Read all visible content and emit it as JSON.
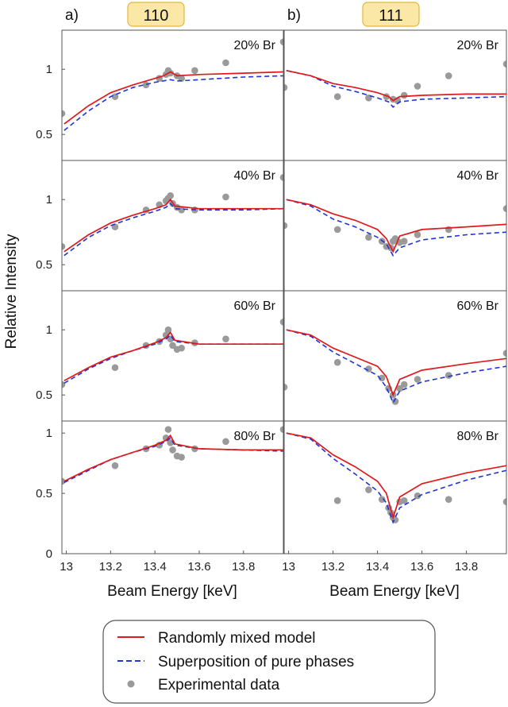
{
  "chart_data": {
    "type": "line",
    "ylabel": "Relative Intensity",
    "xlabel": "Beam Energy [keV]",
    "xlim": [
      12.98,
      13.98
    ],
    "x_ticks": [
      "13",
      "13.2",
      "13.4",
      "13.6",
      "13.8"
    ],
    "y_ticks": [
      "1",
      "0.5"
    ],
    "y_ticks_bottom": [
      "1",
      "0.5",
      "0"
    ],
    "ylim": [
      0.3,
      1.3
    ],
    "ylim_bottom_row": [
      0.0,
      1.1
    ],
    "columns": [
      {
        "panel_label": "a)",
        "reflection": "110"
      },
      {
        "panel_label": "b)",
        "reflection": "111"
      }
    ],
    "rows": [
      "20% Br",
      "40% Br",
      "60% Br",
      "80% Br"
    ],
    "legend": [
      {
        "label": "Randomly mixed model",
        "color": "#e0191b",
        "style": "solid"
      },
      {
        "label": "Superposition of pure phases",
        "color": "#1f35d6",
        "style": "dashed"
      },
      {
        "label": "Experimental data",
        "color": "#9a9a9a",
        "style": "marker"
      }
    ],
    "panels": [
      {
        "row": 0,
        "col": 0,
        "composition": "20% Br",
        "red": [
          [
            12.99,
            0.58
          ],
          [
            13.1,
            0.72
          ],
          [
            13.2,
            0.82
          ],
          [
            13.3,
            0.88
          ],
          [
            13.4,
            0.93
          ],
          [
            13.44,
            0.95
          ],
          [
            13.47,
            0.98
          ],
          [
            13.5,
            0.95
          ],
          [
            13.6,
            0.96
          ],
          [
            13.8,
            0.97
          ],
          [
            13.98,
            0.98
          ]
        ],
        "blue": [
          [
            12.99,
            0.53
          ],
          [
            13.1,
            0.68
          ],
          [
            13.2,
            0.79
          ],
          [
            13.3,
            0.86
          ],
          [
            13.4,
            0.9
          ],
          [
            13.47,
            0.92
          ],
          [
            13.5,
            0.91
          ],
          [
            13.6,
            0.92
          ],
          [
            13.8,
            0.94
          ],
          [
            13.98,
            0.95
          ]
        ],
        "points": [
          [
            12.98,
            0.66
          ],
          [
            13.22,
            0.79
          ],
          [
            13.36,
            0.88
          ],
          [
            13.42,
            0.93
          ],
          [
            13.45,
            0.96
          ],
          [
            13.46,
            0.99
          ],
          [
            13.47,
            0.97
          ],
          [
            13.5,
            0.95
          ],
          [
            13.52,
            0.93
          ],
          [
            13.58,
            0.99
          ],
          [
            13.72,
            1.05
          ],
          [
            13.98,
            1.21
          ]
        ]
      },
      {
        "row": 0,
        "col": 1,
        "composition": "20% Br",
        "red": [
          [
            12.99,
            0.99
          ],
          [
            13.1,
            0.95
          ],
          [
            13.2,
            0.89
          ],
          [
            13.3,
            0.86
          ],
          [
            13.4,
            0.82
          ],
          [
            13.45,
            0.79
          ],
          [
            13.47,
            0.76
          ],
          [
            13.5,
            0.79
          ],
          [
            13.6,
            0.8
          ],
          [
            13.8,
            0.81
          ],
          [
            13.98,
            0.81
          ]
        ],
        "blue": [
          [
            12.99,
            0.99
          ],
          [
            13.1,
            0.95
          ],
          [
            13.2,
            0.87
          ],
          [
            13.3,
            0.83
          ],
          [
            13.4,
            0.78
          ],
          [
            13.45,
            0.75
          ],
          [
            13.47,
            0.71
          ],
          [
            13.5,
            0.75
          ],
          [
            13.6,
            0.77
          ],
          [
            13.8,
            0.78
          ],
          [
            13.98,
            0.79
          ]
        ],
        "points": [
          [
            12.98,
            0.86
          ],
          [
            13.22,
            0.79
          ],
          [
            13.36,
            0.78
          ],
          [
            13.44,
            0.79
          ],
          [
            13.47,
            0.77
          ],
          [
            13.49,
            0.76
          ],
          [
            13.52,
            0.8
          ],
          [
            13.58,
            0.87
          ],
          [
            13.72,
            0.95
          ],
          [
            13.98,
            1.04
          ]
        ]
      },
      {
        "row": 1,
        "col": 0,
        "composition": "40% Br",
        "red": [
          [
            12.99,
            0.6
          ],
          [
            13.1,
            0.73
          ],
          [
            13.2,
            0.82
          ],
          [
            13.3,
            0.88
          ],
          [
            13.4,
            0.93
          ],
          [
            13.45,
            0.96
          ],
          [
            13.47,
            1.0
          ],
          [
            13.49,
            0.95
          ],
          [
            13.6,
            0.93
          ],
          [
            13.8,
            0.93
          ],
          [
            13.98,
            0.93
          ]
        ],
        "blue": [
          [
            12.99,
            0.57
          ],
          [
            13.1,
            0.71
          ],
          [
            13.2,
            0.8
          ],
          [
            13.3,
            0.86
          ],
          [
            13.4,
            0.91
          ],
          [
            13.45,
            0.94
          ],
          [
            13.47,
            0.97
          ],
          [
            13.49,
            0.93
          ],
          [
            13.6,
            0.92
          ],
          [
            13.8,
            0.92
          ],
          [
            13.98,
            0.93
          ]
        ],
        "points": [
          [
            12.98,
            0.64
          ],
          [
            13.22,
            0.79
          ],
          [
            13.36,
            0.92
          ],
          [
            13.42,
            0.96
          ],
          [
            13.45,
            0.99
          ],
          [
            13.46,
            1.01
          ],
          [
            13.47,
            1.03
          ],
          [
            13.48,
            0.97
          ],
          [
            13.5,
            0.94
          ],
          [
            13.52,
            0.92
          ],
          [
            13.58,
            0.92
          ],
          [
            13.72,
            1.02
          ],
          [
            13.98,
            1.17
          ]
        ]
      },
      {
        "row": 1,
        "col": 1,
        "composition": "40% Br",
        "red": [
          [
            12.99,
            1.0
          ],
          [
            13.1,
            0.96
          ],
          [
            13.2,
            0.89
          ],
          [
            13.3,
            0.84
          ],
          [
            13.4,
            0.77
          ],
          [
            13.44,
            0.7
          ],
          [
            13.47,
            0.6
          ],
          [
            13.5,
            0.72
          ],
          [
            13.6,
            0.77
          ],
          [
            13.8,
            0.79
          ],
          [
            13.98,
            0.81
          ]
        ],
        "blue": [
          [
            12.99,
            1.0
          ],
          [
            13.1,
            0.95
          ],
          [
            13.2,
            0.85
          ],
          [
            13.3,
            0.79
          ],
          [
            13.4,
            0.71
          ],
          [
            13.44,
            0.66
          ],
          [
            13.47,
            0.57
          ],
          [
            13.5,
            0.63
          ],
          [
            13.6,
            0.69
          ],
          [
            13.8,
            0.73
          ],
          [
            13.98,
            0.75
          ]
        ],
        "points": [
          [
            12.98,
            0.8
          ],
          [
            13.22,
            0.77
          ],
          [
            13.36,
            0.71
          ],
          [
            13.42,
            0.68
          ],
          [
            13.44,
            0.64
          ],
          [
            13.46,
            0.63
          ],
          [
            13.47,
            0.68
          ],
          [
            13.48,
            0.7
          ],
          [
            13.5,
            0.67
          ],
          [
            13.52,
            0.68
          ],
          [
            13.58,
            0.73
          ],
          [
            13.72,
            0.77
          ],
          [
            13.98,
            0.93
          ]
        ]
      },
      {
        "row": 2,
        "col": 0,
        "composition": "60% Br",
        "red": [
          [
            12.99,
            0.61
          ],
          [
            13.1,
            0.71
          ],
          [
            13.2,
            0.79
          ],
          [
            13.3,
            0.84
          ],
          [
            13.4,
            0.9
          ],
          [
            13.45,
            0.94
          ],
          [
            13.47,
            0.98
          ],
          [
            13.49,
            0.92
          ],
          [
            13.6,
            0.89
          ],
          [
            13.8,
            0.89
          ],
          [
            13.98,
            0.89
          ]
        ],
        "blue": [
          [
            12.99,
            0.59
          ],
          [
            13.1,
            0.7
          ],
          [
            13.2,
            0.78
          ],
          [
            13.3,
            0.84
          ],
          [
            13.4,
            0.89
          ],
          [
            13.45,
            0.93
          ],
          [
            13.47,
            0.96
          ],
          [
            13.49,
            0.91
          ],
          [
            13.6,
            0.89
          ],
          [
            13.8,
            0.89
          ],
          [
            13.98,
            0.89
          ]
        ],
        "points": [
          [
            12.98,
            0.58
          ],
          [
            13.22,
            0.71
          ],
          [
            13.36,
            0.88
          ],
          [
            13.42,
            0.91
          ],
          [
            13.45,
            0.96
          ],
          [
            13.46,
            1.0
          ],
          [
            13.47,
            0.93
          ],
          [
            13.48,
            0.88
          ],
          [
            13.5,
            0.85
          ],
          [
            13.52,
            0.86
          ],
          [
            13.58,
            0.9
          ],
          [
            13.72,
            0.93
          ],
          [
            13.98,
            1.06
          ]
        ]
      },
      {
        "row": 2,
        "col": 1,
        "composition": "60% Br",
        "red": [
          [
            12.99,
            1.0
          ],
          [
            13.1,
            0.96
          ],
          [
            13.2,
            0.86
          ],
          [
            13.3,
            0.79
          ],
          [
            13.4,
            0.72
          ],
          [
            13.44,
            0.64
          ],
          [
            13.47,
            0.5
          ],
          [
            13.5,
            0.62
          ],
          [
            13.6,
            0.69
          ],
          [
            13.8,
            0.74
          ],
          [
            13.98,
            0.78
          ]
        ],
        "blue": [
          [
            12.99,
            1.0
          ],
          [
            13.1,
            0.95
          ],
          [
            13.2,
            0.83
          ],
          [
            13.3,
            0.74
          ],
          [
            13.4,
            0.65
          ],
          [
            13.44,
            0.56
          ],
          [
            13.47,
            0.44
          ],
          [
            13.5,
            0.53
          ],
          [
            13.6,
            0.6
          ],
          [
            13.8,
            0.67
          ],
          [
            13.98,
            0.72
          ]
        ],
        "points": [
          [
            12.98,
            0.56
          ],
          [
            13.22,
            0.75
          ],
          [
            13.36,
            0.7
          ],
          [
            13.42,
            0.63
          ],
          [
            13.45,
            0.55
          ],
          [
            13.47,
            0.5
          ],
          [
            13.48,
            0.45
          ],
          [
            13.5,
            0.55
          ],
          [
            13.52,
            0.58
          ],
          [
            13.58,
            0.62
          ],
          [
            13.72,
            0.65
          ],
          [
            13.98,
            0.82
          ]
        ]
      },
      {
        "row": 3,
        "col": 0,
        "composition": "80% Br",
        "red": [
          [
            12.99,
            0.6
          ],
          [
            13.1,
            0.7
          ],
          [
            13.2,
            0.78
          ],
          [
            13.3,
            0.84
          ],
          [
            13.4,
            0.9
          ],
          [
            13.45,
            0.94
          ],
          [
            13.47,
            0.98
          ],
          [
            13.49,
            0.91
          ],
          [
            13.6,
            0.87
          ],
          [
            13.8,
            0.86
          ],
          [
            13.98,
            0.86
          ]
        ],
        "blue": [
          [
            12.99,
            0.59
          ],
          [
            13.1,
            0.69
          ],
          [
            13.2,
            0.78
          ],
          [
            13.3,
            0.84
          ],
          [
            13.4,
            0.89
          ],
          [
            13.45,
            0.93
          ],
          [
            13.47,
            0.96
          ],
          [
            13.49,
            0.9
          ],
          [
            13.6,
            0.87
          ],
          [
            13.8,
            0.86
          ],
          [
            13.98,
            0.85
          ]
        ],
        "points": [
          [
            12.98,
            0.6
          ],
          [
            13.22,
            0.73
          ],
          [
            13.36,
            0.87
          ],
          [
            13.42,
            0.9
          ],
          [
            13.45,
            0.96
          ],
          [
            13.46,
            1.03
          ],
          [
            13.47,
            0.92
          ],
          [
            13.48,
            0.86
          ],
          [
            13.5,
            0.81
          ],
          [
            13.52,
            0.8
          ],
          [
            13.58,
            0.87
          ],
          [
            13.72,
            0.93
          ],
          [
            13.98,
            1.03
          ]
        ]
      },
      {
        "row": 3,
        "col": 1,
        "composition": "80% Br",
        "red": [
          [
            12.99,
            1.0
          ],
          [
            13.1,
            0.96
          ],
          [
            13.2,
            0.82
          ],
          [
            13.3,
            0.72
          ],
          [
            13.4,
            0.6
          ],
          [
            13.44,
            0.5
          ],
          [
            13.47,
            0.3
          ],
          [
            13.5,
            0.47
          ],
          [
            13.6,
            0.58
          ],
          [
            13.8,
            0.67
          ],
          [
            13.98,
            0.73
          ]
        ],
        "blue": [
          [
            12.99,
            1.0
          ],
          [
            13.1,
            0.95
          ],
          [
            13.2,
            0.79
          ],
          [
            13.3,
            0.66
          ],
          [
            13.4,
            0.52
          ],
          [
            13.44,
            0.42
          ],
          [
            13.47,
            0.26
          ],
          [
            13.5,
            0.38
          ],
          [
            13.6,
            0.49
          ],
          [
            13.8,
            0.61
          ],
          [
            13.98,
            0.69
          ]
        ],
        "points": [
          [
            13.22,
            0.44
          ],
          [
            13.36,
            0.53
          ],
          [
            13.42,
            0.45
          ],
          [
            13.45,
            0.38
          ],
          [
            13.46,
            0.34
          ],
          [
            13.47,
            0.3
          ],
          [
            13.48,
            0.28
          ],
          [
            13.5,
            0.43
          ],
          [
            13.52,
            0.44
          ],
          [
            13.58,
            0.48
          ],
          [
            13.72,
            0.45
          ],
          [
            13.98,
            0.43
          ]
        ]
      }
    ]
  }
}
